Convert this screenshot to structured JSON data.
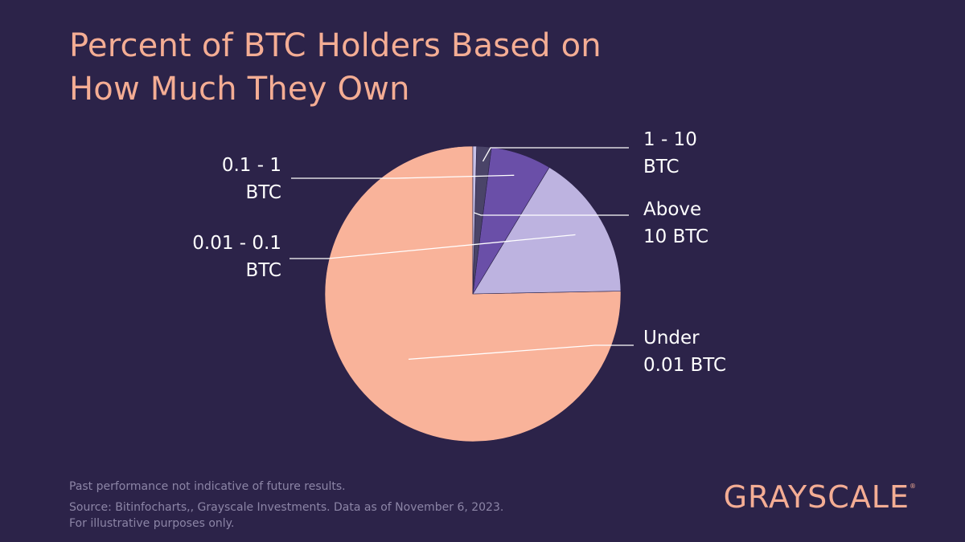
{
  "title_line1": "Percent of BTC Holders Based on",
  "title_line2": "How Much They Own",
  "chart_data": {
    "type": "pie",
    "title": "Percent of BTC Holders Based on How Much They Own",
    "slices": [
      {
        "name": "Under 0.01 BTC",
        "label_lines": [
          "Under",
          "0.01 BTC"
        ],
        "value": 75.0,
        "color": "#f9b39a"
      },
      {
        "name": "0.01 - 0.1 BTC",
        "label_lines": [
          "0.01 - 0.1",
          "BTC"
        ],
        "value": 16.0,
        "color": "#bdb3e0"
      },
      {
        "name": "0.1 - 1 BTC",
        "label_lines": [
          "0.1 - 1",
          "BTC"
        ],
        "value": 6.6,
        "color": "#6a4fa8"
      },
      {
        "name": "1 - 10 BTC",
        "label_lines": [
          "1 - 10",
          "BTC"
        ],
        "value": 1.6,
        "color": "#4a4468"
      },
      {
        "name": "Above 10 BTC",
        "label_lines": [
          "Above",
          "10 BTC"
        ],
        "value": 0.4,
        "color": "#c8c2e8"
      }
    ]
  },
  "footer": {
    "disclaimer": "Past performance not indicative of future results.",
    "source": "Source: Bitinfocharts,, Grayscale Investments. Data as of November 6, 2023.",
    "illustrative": "For illustrative purposes only."
  },
  "logo": "GRAYSCALE",
  "logo_mark": "®",
  "colors": {
    "background": "#2c2349",
    "title": "#f4ad94",
    "label": "#ffffff",
    "leader_line": "#ffffff",
    "footer": "#8c85a6"
  }
}
